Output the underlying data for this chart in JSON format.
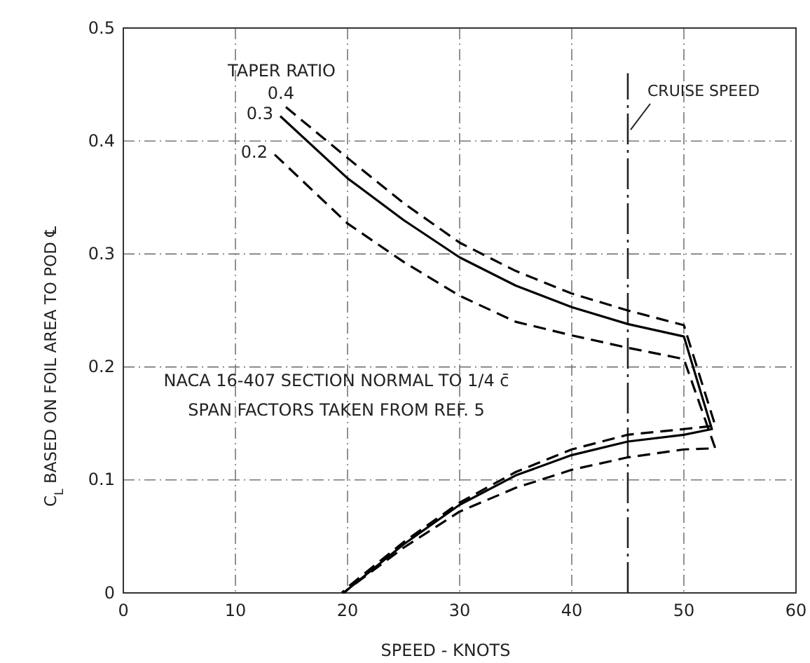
{
  "chart_data": {
    "type": "line",
    "xlabel": "SPEED - KNOTS",
    "ylabel": "C$_{L}$ BASED ON FOIL AREA TO POD ℄",
    "legend_title": "TAPER RATIO",
    "xlim": [
      0,
      60
    ],
    "ylim": [
      0,
      0.5
    ],
    "xticks": [
      0,
      10,
      20,
      30,
      40,
      50,
      60
    ],
    "yticks": [
      0,
      0.1,
      0.2,
      0.3,
      0.4,
      0.5
    ],
    "grid": true,
    "series": [
      {
        "name": "0.4",
        "color": "#000000",
        "line_style": "dashed",
        "x": [
          14.5,
          20,
          25,
          30,
          35,
          40,
          45,
          50,
          52.8,
          50,
          45,
          40,
          35,
          30,
          25,
          20,
          19.5
        ],
        "values": [
          0.43,
          0.385,
          0.345,
          0.31,
          0.285,
          0.265,
          0.25,
          0.237,
          0.148,
          0.145,
          0.14,
          0.127,
          0.107,
          0.08,
          0.045,
          0.005,
          0
        ]
      },
      {
        "name": "0.3",
        "color": "#000000",
        "line_style": "solid",
        "x": [
          14,
          20,
          25,
          30,
          35,
          40,
          45,
          50,
          52.5,
          50,
          45,
          40,
          35,
          30,
          25,
          20,
          19.6
        ],
        "values": [
          0.422,
          0.367,
          0.33,
          0.297,
          0.272,
          0.253,
          0.238,
          0.227,
          0.145,
          0.14,
          0.134,
          0.122,
          0.104,
          0.078,
          0.043,
          0.003,
          0
        ]
      },
      {
        "name": "0.2",
        "color": "#000000",
        "line_style": "dashed",
        "x": [
          13.5,
          20,
          25,
          30,
          35,
          40,
          45,
          50,
          52.8,
          50,
          45,
          40,
          35,
          30,
          25,
          20,
          19.7
        ],
        "values": [
          0.388,
          0.327,
          0.293,
          0.263,
          0.24,
          0.228,
          0.217,
          0.207,
          0.128,
          0.127,
          0.12,
          0.109,
          0.093,
          0.072,
          0.04,
          0.003,
          0
        ]
      }
    ],
    "ref_lines": [
      {
        "axis": "x",
        "value": 45,
        "label": "CRUISE SPEED",
        "line_style": "dashed"
      }
    ],
    "annotations": [
      "NACA 16-407 SECTION NORMAL TO 1/4 c̄",
      "SPAN FACTORS TAKEN FROM REF. 5"
    ]
  }
}
